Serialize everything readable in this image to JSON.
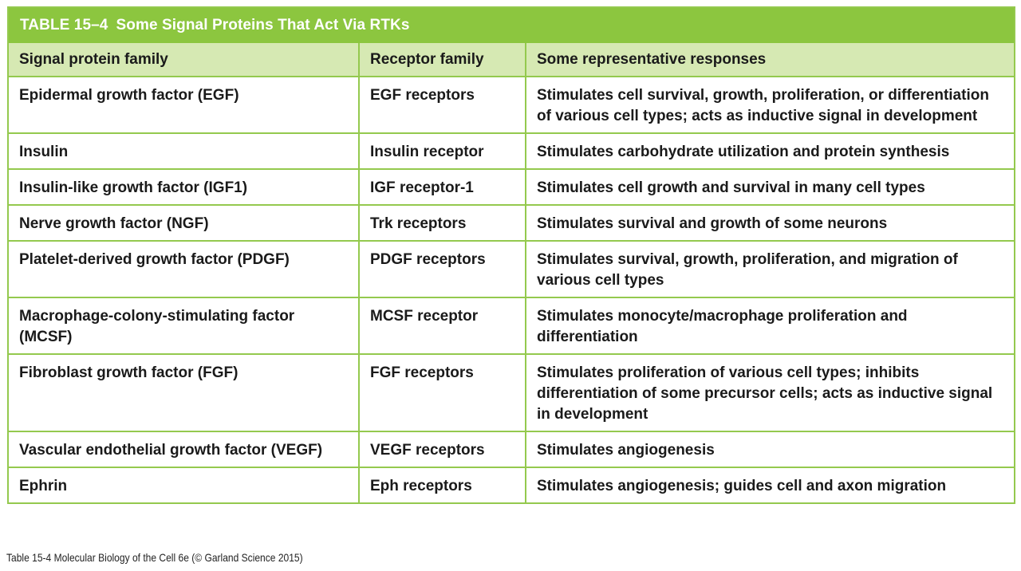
{
  "table": {
    "number": "TABLE 15–4",
    "title": "Some Signal Proteins That Act Via RTKs",
    "headers": {
      "col1": "Signal protein family",
      "col2": "Receptor family",
      "col3": "Some representative responses"
    },
    "rows": [
      {
        "signal": "Epidermal growth factor (EGF)",
        "receptor": "EGF receptors",
        "response": "Stimulates cell survival, growth, proliferation, or differentiation of various cell types; acts as inductive signal in development"
      },
      {
        "signal": "Insulin",
        "receptor": "Insulin receptor",
        "response": "Stimulates carbohydrate utilization and protein synthesis"
      },
      {
        "signal": "Insulin-like growth factor (IGF1)",
        "receptor": "IGF receptor-1",
        "response": "Stimulates cell growth and survival in many cell types"
      },
      {
        "signal": "Nerve growth factor (NGF)",
        "receptor": "Trk receptors",
        "response": "Stimulates survival and growth of some neurons"
      },
      {
        "signal": "Platelet-derived growth factor (PDGF)",
        "receptor": "PDGF receptors",
        "response": "Stimulates survival, growth, proliferation, and migration of various cell types"
      },
      {
        "signal": "Macrophage-colony-stimulating factor (MCSF)",
        "receptor": "MCSF receptor",
        "response": "Stimulates monocyte/macrophage proliferation and differentiation"
      },
      {
        "signal": "Fibroblast growth factor (FGF)",
        "receptor": "FGF receptors",
        "response": "Stimulates proliferation of various cell types; inhibits differentiation of some precursor cells; acts as inductive signal in development"
      },
      {
        "signal": "Vascular endothelial growth factor (VEGF)",
        "receptor": "VEGF receptors",
        "response": "Stimulates angiogenesis"
      },
      {
        "signal": "Ephrin",
        "receptor": "Eph receptors",
        "response": "Stimulates angiogenesis; guides cell and axon migration"
      }
    ]
  },
  "caption": "Table 15-4  Molecular Biology of the Cell 6e (© Garland Science 2015)",
  "colors": {
    "title_bar": "#8cc63f",
    "header_row": "#d6e9b3",
    "border": "#94c94e"
  }
}
